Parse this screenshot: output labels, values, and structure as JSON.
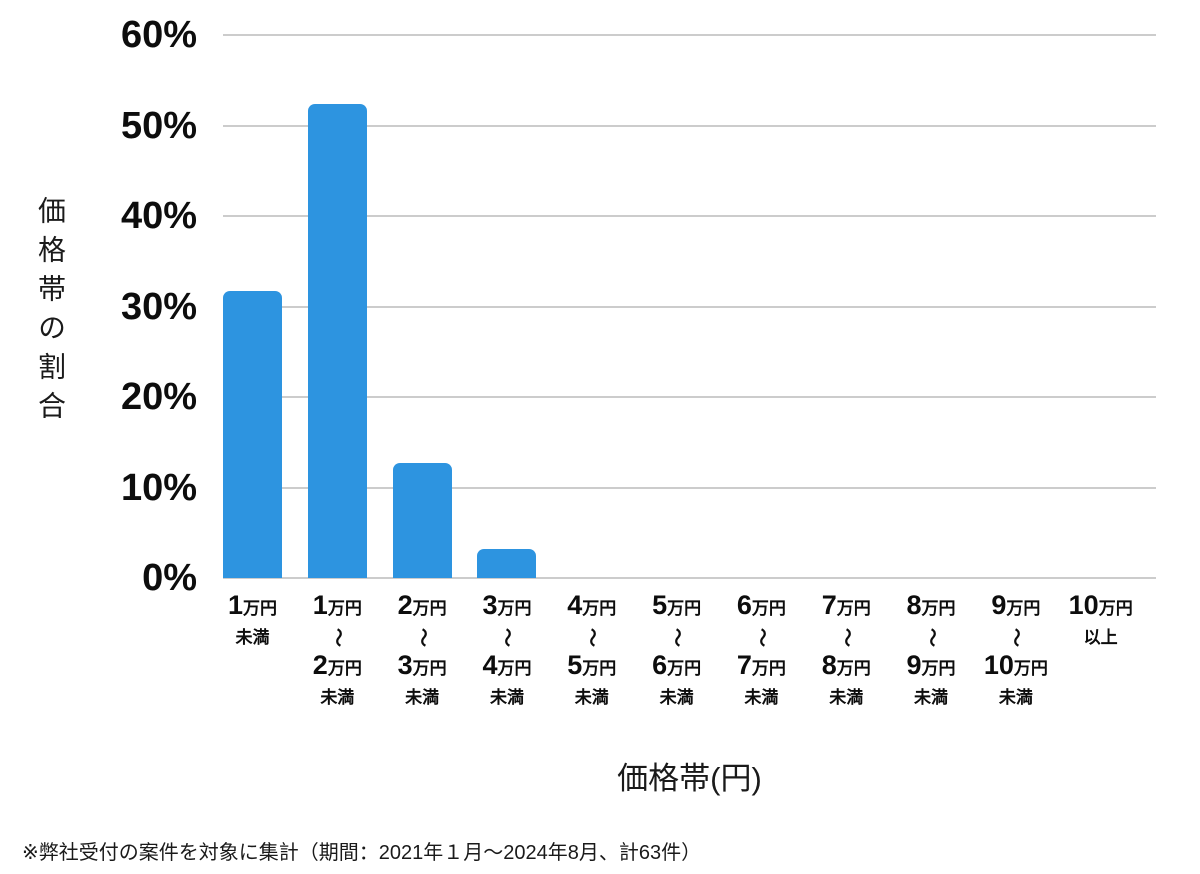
{
  "chart_data": {
    "type": "bar",
    "title": "",
    "xlabel": "価格帯(円)",
    "ylabel": "価格帯の割合",
    "ylim": [
      0,
      60
    ],
    "ytick_labels": [
      "60%",
      "50%",
      "40%",
      "30%",
      "20%",
      "10%",
      "0%"
    ],
    "grid": "horizontal-only",
    "legend": "none",
    "categories": [
      "1万円未満",
      "1万円〜2万円未満",
      "2万円〜3万円未満",
      "3万円〜4万円未満",
      "4万円〜5万円未満",
      "5万円〜6万円未満",
      "6万円〜7万円未満",
      "7万円〜8万円未満",
      "8万円〜9万円未満",
      "9万円〜10万円未満",
      "10万円以上"
    ],
    "category_parts": [
      {
        "from": {
          "num": "1",
          "unit": "万円"
        },
        "tilde": "",
        "to": null,
        "suffix": "未満"
      },
      {
        "from": {
          "num": "1",
          "unit": "万円"
        },
        "tilde": "〜",
        "to": {
          "num": "2",
          "unit": "万円"
        },
        "suffix": "未満"
      },
      {
        "from": {
          "num": "2",
          "unit": "万円"
        },
        "tilde": "〜",
        "to": {
          "num": "3",
          "unit": "万円"
        },
        "suffix": "未満"
      },
      {
        "from": {
          "num": "3",
          "unit": "万円"
        },
        "tilde": "〜",
        "to": {
          "num": "4",
          "unit": "万円"
        },
        "suffix": "未満"
      },
      {
        "from": {
          "num": "4",
          "unit": "万円"
        },
        "tilde": "〜",
        "to": {
          "num": "5",
          "unit": "万円"
        },
        "suffix": "未満"
      },
      {
        "from": {
          "num": "5",
          "unit": "万円"
        },
        "tilde": "〜",
        "to": {
          "num": "6",
          "unit": "万円"
        },
        "suffix": "未満"
      },
      {
        "from": {
          "num": "6",
          "unit": "万円"
        },
        "tilde": "〜",
        "to": {
          "num": "7",
          "unit": "万円"
        },
        "suffix": "未満"
      },
      {
        "from": {
          "num": "7",
          "unit": "万円"
        },
        "tilde": "〜",
        "to": {
          "num": "8",
          "unit": "万円"
        },
        "suffix": "未満"
      },
      {
        "from": {
          "num": "8",
          "unit": "万円"
        },
        "tilde": "〜",
        "to": {
          "num": "9",
          "unit": "万円"
        },
        "suffix": "未満"
      },
      {
        "from": {
          "num": "9",
          "unit": "万円"
        },
        "tilde": "〜",
        "to": {
          "num": "10",
          "unit": "万円"
        },
        "suffix": "未満"
      },
      {
        "from": {
          "num": "10",
          "unit": "万円"
        },
        "tilde": "",
        "to": null,
        "suffix": "以上"
      }
    ],
    "values": [
      31.7,
      52.4,
      12.7,
      3.2,
      0,
      0,
      0,
      0,
      0,
      0,
      0
    ]
  },
  "footnote": "※弊社受付の案件を対象に集計（期間：2021年１月～2024年8月、計63件）",
  "colors": {
    "bar": "#2D94E0",
    "grid": "#CCCCCC",
    "text": "#111111",
    "background": "#FFFFFF"
  }
}
